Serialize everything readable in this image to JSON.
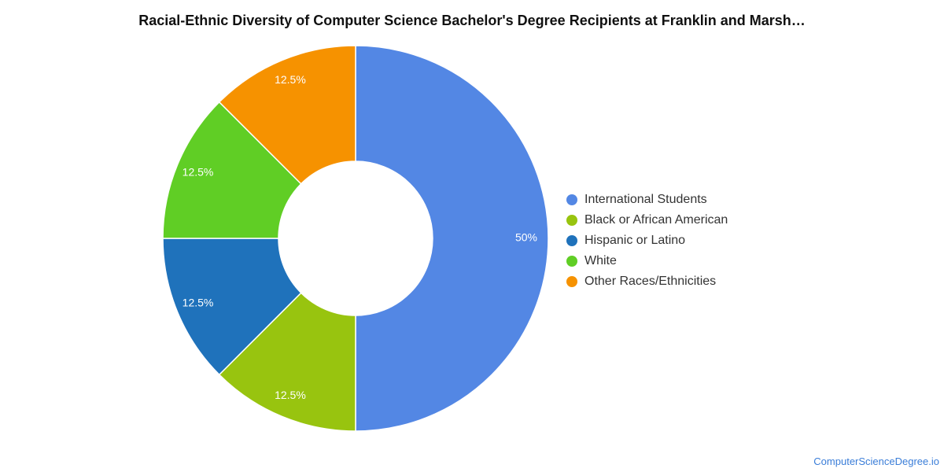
{
  "title": "Racial-Ethnic Diversity of Computer Science Bachelor's Degree Recipients at Franklin and Marsh…",
  "credit": "ComputerScienceDegree.io",
  "chart_data": {
    "type": "pie",
    "variant": "donut",
    "legend_position": "right",
    "series": [
      {
        "name": "International Students",
        "value": 50,
        "label": "50%",
        "color": "#5387e4"
      },
      {
        "name": "Black or African American",
        "value": 12.5,
        "label": "12.5%",
        "color": "#98c40f"
      },
      {
        "name": "Hispanic or Latino",
        "value": 12.5,
        "label": "12.5%",
        "color": "#1f72bb"
      },
      {
        "name": "White",
        "value": 12.5,
        "label": "12.5%",
        "color": "#60ce25"
      },
      {
        "name": "Other Races/Ethnicities",
        "value": 12.5,
        "label": "12.5%",
        "color": "#f69200"
      }
    ]
  }
}
